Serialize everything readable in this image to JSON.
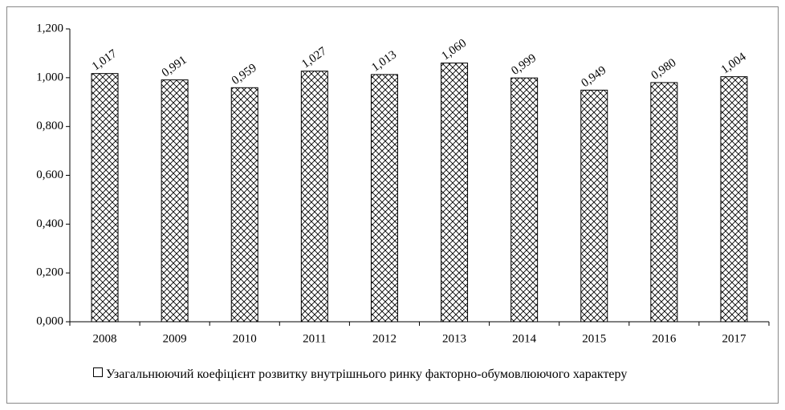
{
  "chart_data": {
    "type": "bar",
    "categories": [
      "2008",
      "2009",
      "2010",
      "2011",
      "2012",
      "2013",
      "2014",
      "2015",
      "2016",
      "2017"
    ],
    "series": [
      {
        "name": "Узагальнюючий коефіцієнт розвитку внутрішнього ринку факторно-обумовлюючого характеру",
        "color": "#000000",
        "values": [
          1.017,
          0.991,
          0.959,
          1.027,
          1.013,
          1.06,
          0.999,
          0.949,
          0.98,
          1.004
        ],
        "value_labels": [
          "1,017",
          "0,991",
          "0,959",
          "1,027",
          "1,013",
          "1,060",
          "0,999",
          "0,949",
          "0,980",
          "1,004"
        ]
      }
    ],
    "ylim": [
      0,
      1.2
    ],
    "yticks": [
      {
        "value": 0,
        "label": "0,000"
      },
      {
        "value": 0.2,
        "label": "0,200"
      },
      {
        "value": 0.4,
        "label": "0,400"
      },
      {
        "value": 0.6,
        "label": "0,600"
      },
      {
        "value": 0.8,
        "label": "0,800"
      },
      {
        "value": 1.0,
        "label": "1,000"
      },
      {
        "value": 1.2,
        "label": "1,200"
      }
    ],
    "legend": "bottom"
  }
}
